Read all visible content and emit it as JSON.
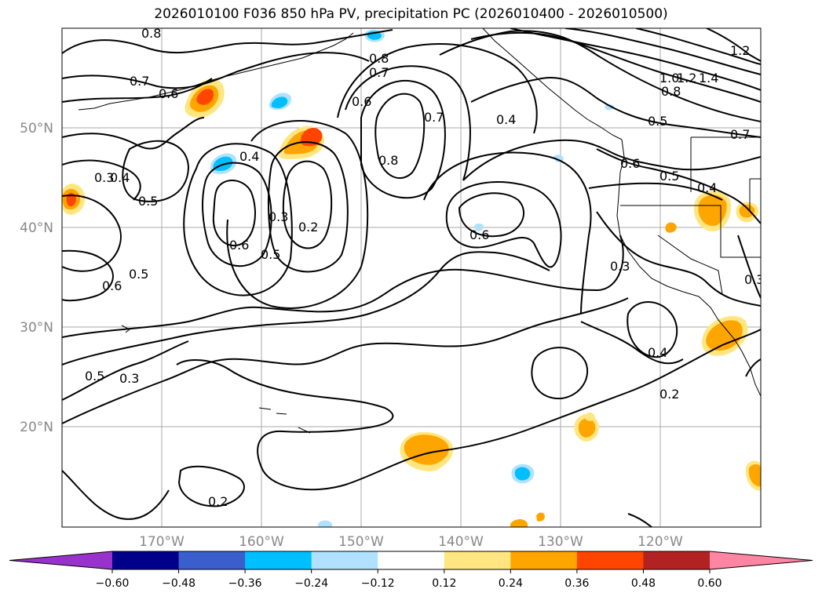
{
  "title": "2026010100 F036 850 hPa PV, precipitation PC (2026010400 - 2026010500)",
  "axes": {
    "lat_labels": [
      "50°N",
      "40°N",
      "30°N",
      "20°N"
    ],
    "lon_labels": [
      "170°W",
      "160°W",
      "150°W",
      "140°W",
      "130°W",
      "120°W"
    ]
  },
  "contour_labels": [
    "0.7",
    "0.6",
    "0.8",
    "0.8",
    "0.7",
    "0.6",
    "0.4",
    "0.7",
    "0.8",
    "1.2",
    "1.4",
    "1.2",
    "1.0",
    "0.8",
    "0.5",
    "0.6",
    "0.5",
    "0.4",
    "0.3",
    "0.4",
    "0.5",
    "0.4",
    "0.3",
    "0.2",
    "0.6",
    "0.5",
    "0.6",
    "0.6",
    "0.5",
    "0.3",
    "0.3",
    "0.4",
    "0.5",
    "0.3",
    "0.2",
    "0.2",
    "0.7"
  ],
  "colorbar": {
    "ticks": [
      "−0.60",
      "−0.48",
      "−0.36",
      "−0.24",
      "−0.12",
      "0.12",
      "0.24",
      "0.36",
      "0.48",
      "0.60"
    ],
    "colors": [
      "#9932cc",
      "#00008b",
      "#3a5fcd",
      "#00bfff",
      "#b0e2ff",
      "#ffffff",
      "#ffe680",
      "#ffa500",
      "#ff4500",
      "#b22222",
      "#ff85a2"
    ]
  }
}
